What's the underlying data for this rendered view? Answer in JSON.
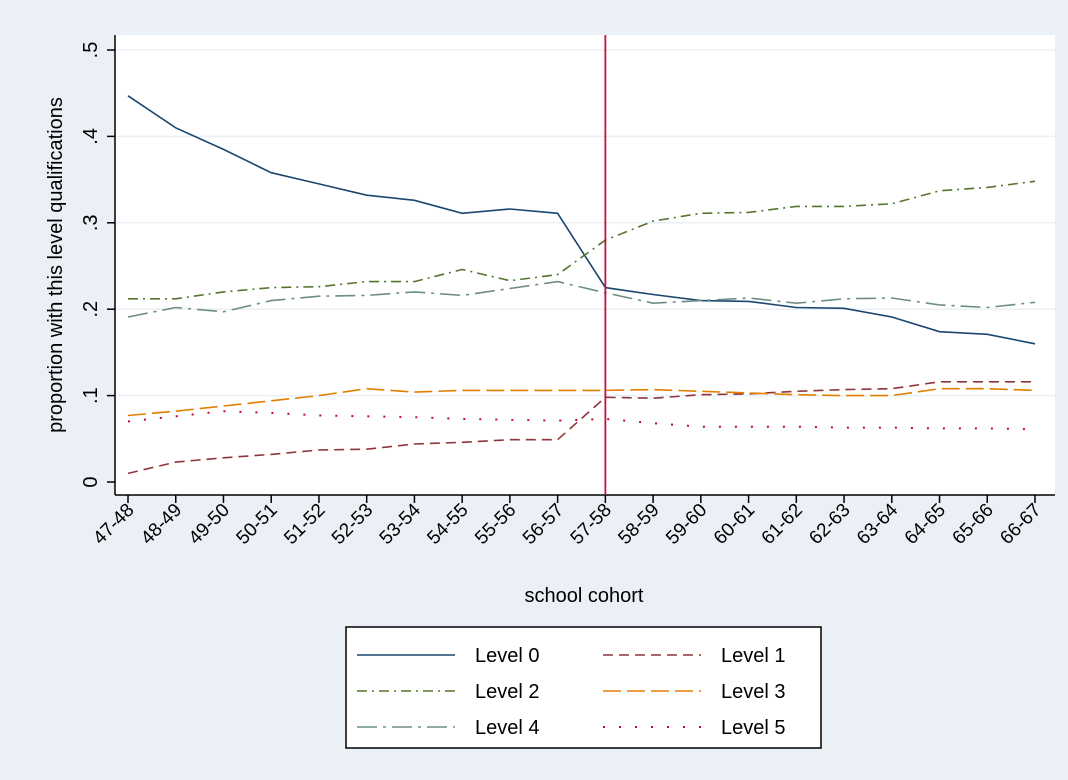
{
  "chart_data": {
    "type": "line",
    "title": "",
    "xlabel": "school cohort",
    "ylabel": "proportion with this level qualifications",
    "ylim": [
      0,
      0.5
    ],
    "yticks": [
      0,
      0.1,
      0.2,
      0.3,
      0.4,
      0.5
    ],
    "ytick_labels": [
      "0",
      ".1",
      ".2",
      ".3",
      ".4",
      ".5"
    ],
    "grid": "horizontal",
    "legend_position": "bottom",
    "reference_line": {
      "x": "57-58",
      "color": "#c0143c"
    },
    "categories": [
      "47-48",
      "48-49",
      "49-50",
      "50-51",
      "51-52",
      "52-53",
      "53-54",
      "54-55",
      "55-56",
      "56-57",
      "57-58",
      "58-59",
      "59-60",
      "60-61",
      "61-62",
      "62-63",
      "63-64",
      "64-65",
      "65-66",
      "66-67"
    ],
    "series": [
      {
        "name": "Level 0",
        "color": "#1a476f",
        "dash": "solid",
        "values": [
          0.447,
          0.41,
          0.385,
          0.358,
          0.345,
          0.332,
          0.326,
          0.311,
          0.316,
          0.311,
          0.225,
          0.217,
          0.21,
          0.209,
          0.202,
          0.201,
          0.191,
          0.174,
          0.171,
          0.16
        ]
      },
      {
        "name": "Level 1",
        "color": "#90353b",
        "dash": "dash",
        "values": [
          0.01,
          0.023,
          0.028,
          0.032,
          0.037,
          0.038,
          0.044,
          0.046,
          0.049,
          0.049,
          0.098,
          0.097,
          0.101,
          0.102,
          0.105,
          0.107,
          0.108,
          0.116,
          0.116,
          0.116
        ]
      },
      {
        "name": "Level 2",
        "color": "#55752f",
        "dash": "dashdot",
        "values": [
          0.212,
          0.212,
          0.22,
          0.225,
          0.226,
          0.232,
          0.232,
          0.246,
          0.233,
          0.24,
          0.28,
          0.302,
          0.311,
          0.312,
          0.319,
          0.319,
          0.322,
          0.337,
          0.341,
          0.348
        ]
      },
      {
        "name": "Level 3",
        "color": "#e37e00",
        "dash": "longdash",
        "values": [
          0.077,
          0.082,
          0.088,
          0.094,
          0.1,
          0.108,
          0.104,
          0.106,
          0.106,
          0.106,
          0.106,
          0.107,
          0.105,
          0.103,
          0.101,
          0.1,
          0.1,
          0.108,
          0.108,
          0.106
        ]
      },
      {
        "name": "Level 4",
        "color": "#6e8e84",
        "dash": "longdashdot",
        "values": [
          0.191,
          0.202,
          0.197,
          0.21,
          0.215,
          0.216,
          0.22,
          0.216,
          0.224,
          0.232,
          0.219,
          0.207,
          0.21,
          0.213,
          0.207,
          0.212,
          0.213,
          0.205,
          0.202,
          0.208
        ]
      },
      {
        "name": "Level 5",
        "color": "#c10534",
        "dash": "dot",
        "values": [
          0.07,
          0.076,
          0.082,
          0.08,
          0.077,
          0.076,
          0.075,
          0.073,
          0.072,
          0.071,
          0.073,
          0.068,
          0.064,
          0.064,
          0.064,
          0.063,
          0.063,
          0.062,
          0.062,
          0.061
        ]
      }
    ]
  }
}
